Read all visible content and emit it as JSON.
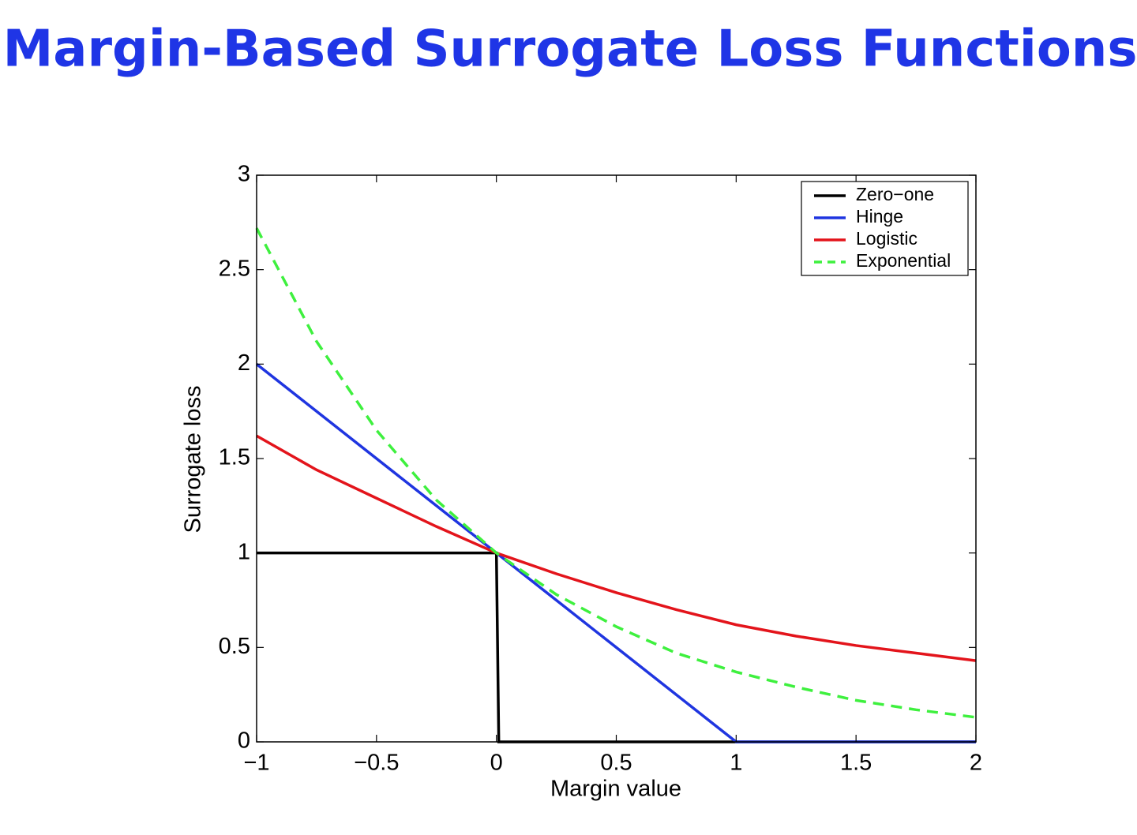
{
  "chart_data": {
    "type": "line",
    "title": "Margin-Based Surrogate Loss Functions",
    "x_label": "Margin value",
    "y_label": "Surrogate loss",
    "xlim": [
      -1,
      2
    ],
    "ylim": [
      0,
      3
    ],
    "xticks": [
      {
        "value": -1,
        "label": "−1"
      },
      {
        "value": -0.5,
        "label": "−0.5"
      },
      0,
      0.5,
      1,
      1.5,
      2
    ],
    "yticks": [
      0,
      0.5,
      1,
      1.5,
      2,
      2.5,
      3
    ],
    "grid": false,
    "legend": "upper-right",
    "series": [
      {
        "name": "Zero−one",
        "color": "#000000",
        "style": "solid",
        "x": [
          -1,
          0,
          0.01,
          2
        ],
        "values": [
          1,
          1,
          0,
          0
        ]
      },
      {
        "name": "Hinge",
        "color": "#1f35e0",
        "style": "solid",
        "x": [
          -1,
          1,
          2
        ],
        "values": [
          2,
          0,
          0
        ]
      },
      {
        "name": "Logistic",
        "color": "#e3141b",
        "style": "solid",
        "x": [
          -1,
          -0.75,
          -0.5,
          -0.25,
          0,
          0.25,
          0.5,
          0.75,
          1,
          1.25,
          1.5,
          1.75,
          2
        ],
        "values": [
          1.62,
          1.44,
          1.29,
          1.14,
          1,
          0.89,
          0.79,
          0.7,
          0.62,
          0.56,
          0.51,
          0.47,
          0.43
        ]
      },
      {
        "name": "Exponential",
        "color": "#3ef03e",
        "style": "dashed",
        "x": [
          -1,
          -0.75,
          -0.5,
          -0.25,
          0,
          0.25,
          0.5,
          0.75,
          1,
          1.25,
          1.5,
          1.75,
          2
        ],
        "values": [
          2.72,
          2.12,
          1.65,
          1.28,
          1,
          0.78,
          0.61,
          0.47,
          0.37,
          0.29,
          0.22,
          0.17,
          0.13
        ]
      }
    ]
  }
}
